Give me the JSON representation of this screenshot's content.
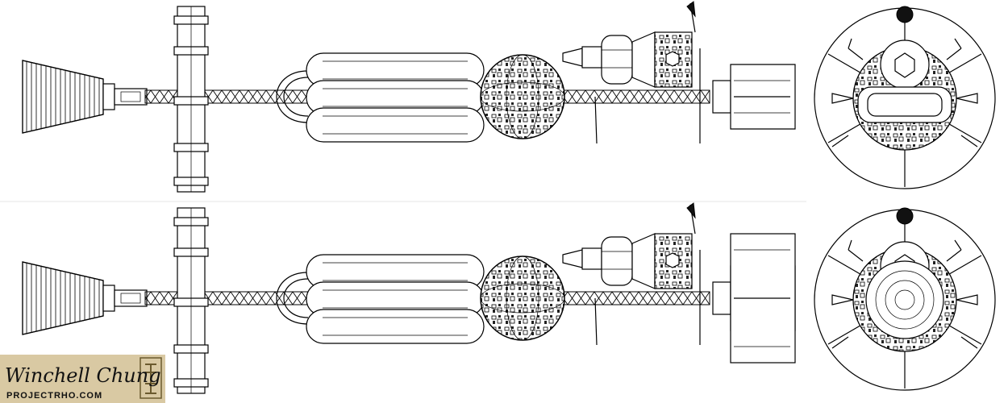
{
  "credit": {
    "name": "Winchell Chung",
    "site": "PROJECTRHO.COM"
  },
  "views": [
    {
      "id": "side-view-upper",
      "kind": "side"
    },
    {
      "id": "side-view-lower",
      "kind": "side"
    },
    {
      "id": "end-view-upper",
      "kind": "end"
    },
    {
      "id": "end-view-lower",
      "kind": "end"
    }
  ]
}
